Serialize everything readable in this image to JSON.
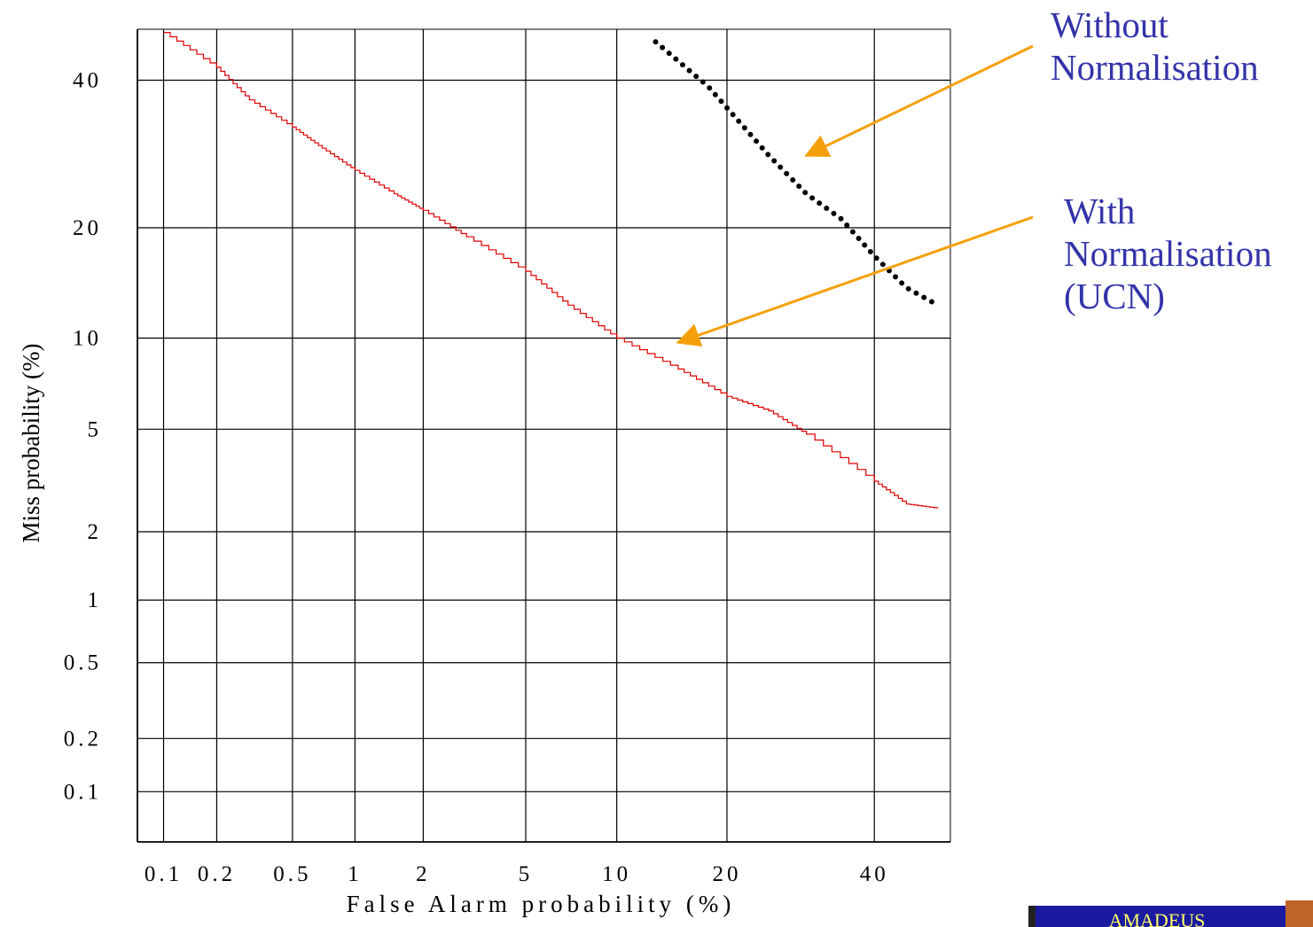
{
  "chart_data": {
    "type": "line",
    "title": "",
    "xlabel": "False Alarm probability (%)",
    "ylabel": "Miss probability (%)",
    "x_scale": "normal-deviate",
    "y_scale": "normal-deviate",
    "xlim": [
      0.07,
      52
    ],
    "ylim": [
      0.05,
      48
    ],
    "x_ticks": [
      0.1,
      0.2,
      0.5,
      1,
      2,
      5,
      10,
      20,
      40
    ],
    "x_tick_labels": [
      "0.1",
      "0.2",
      "0.5",
      "1",
      "2",
      "5",
      "10",
      "20",
      "40"
    ],
    "y_ticks": [
      0.1,
      0.2,
      0.5,
      1,
      2,
      5,
      10,
      20,
      40
    ],
    "y_tick_labels": [
      "0.1",
      "0.2",
      "0.5",
      "1",
      "2",
      "5",
      "10",
      "20",
      "40"
    ],
    "grid": true,
    "series": [
      {
        "name": "",
        "style": "solid",
        "color": "#e00000",
        "points": [
          [
            0.1,
            47.5
          ],
          [
            0.2,
            42
          ],
          [
            0.3,
            37
          ],
          [
            0.5,
            33
          ],
          [
            0.7,
            30
          ],
          [
            1,
            27
          ],
          [
            1.5,
            24
          ],
          [
            2,
            22
          ],
          [
            3,
            19
          ],
          [
            5,
            15.5
          ],
          [
            7,
            12.5
          ],
          [
            10,
            10
          ],
          [
            15,
            8
          ],
          [
            20,
            6.5
          ],
          [
            25,
            5.8
          ],
          [
            30,
            4.8
          ],
          [
            40,
            3.2
          ],
          [
            45,
            2.6
          ],
          [
            50,
            2.5
          ]
        ]
      },
      {
        "name": "",
        "style": "dotted",
        "color": "#000000",
        "points": [
          [
            13,
            46
          ],
          [
            18,
            39
          ],
          [
            25,
            29
          ],
          [
            30,
            24
          ],
          [
            35,
            21
          ],
          [
            40,
            17
          ],
          [
            45,
            14
          ],
          [
            50,
            12.5
          ]
        ]
      }
    ],
    "annotations": [
      {
        "name": "without-normalisation",
        "lines": [
          "Without",
          "Normalisation"
        ],
        "color": "#3333aa",
        "arrow_color": "#f5a00a",
        "arrow_target": [
          30,
          29
        ]
      },
      {
        "name": "with-normalisation",
        "lines": [
          "With",
          "Normalisation",
          "(UCN)"
        ],
        "color": "#3333aa",
        "arrow_color": "#f5a00a",
        "arrow_target": [
          15,
          9.7
        ]
      }
    ]
  },
  "logo": {
    "text": "AMADEUS",
    "background": "#1a1aa0",
    "text_color": "#ffff66"
  }
}
